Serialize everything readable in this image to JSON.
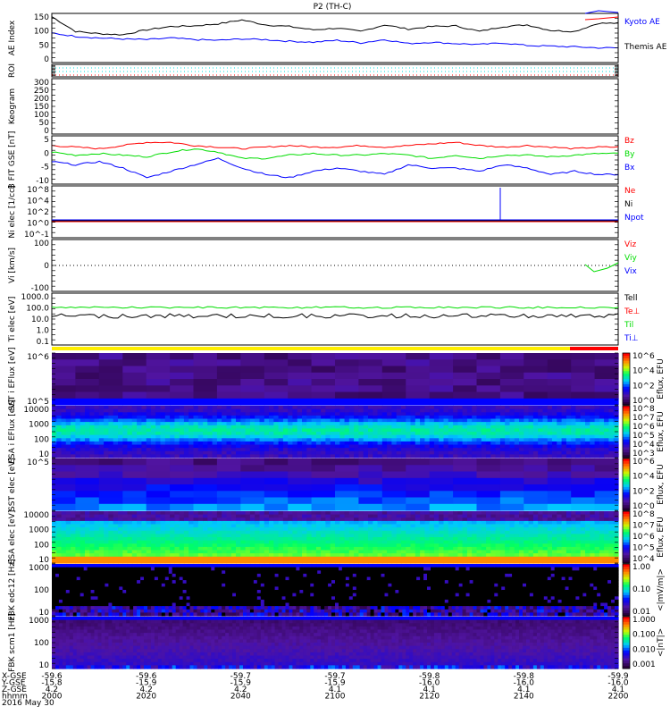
{
  "title": "P2 (TH-C)",
  "chart_data": [
    {
      "type": "line",
      "id": "ae",
      "ylabel": "AE Index",
      "ylim": [
        0,
        150
      ],
      "yticks": [
        "150",
        "100",
        "50",
        "0"
      ],
      "legend": [
        {
          "name": "Kyoto AE",
          "color": "#0000ff"
        },
        {
          "name": "Themis AE",
          "color": "#000000"
        }
      ],
      "series": [
        {
          "name": "Themis AE",
          "color": "#000000",
          "values": [
            140,
            95,
            88,
            85,
            100,
            110,
            112,
            118,
            130,
            115,
            110,
            100,
            105,
            95,
            115,
            102,
            110,
            112,
            95,
            110,
            115,
            98,
            95,
            120
          ]
        },
        {
          "name": "Kyoto AE",
          "color": "#0000ff",
          "values": [
            90,
            80,
            75,
            72,
            70,
            75,
            70,
            68,
            72,
            70,
            65,
            62,
            68,
            60,
            70,
            58,
            62,
            58,
            55,
            60,
            52,
            50,
            48,
            45
          ]
        }
      ]
    },
    {
      "type": "line",
      "id": "roi",
      "ylabel": "ROI"
    },
    {
      "type": "line",
      "id": "keogram",
      "ylabel": "Keogram",
      "ylim": [
        0,
        300
      ],
      "yticks": [
        "300",
        "250",
        "200",
        "150",
        "100",
        "50",
        "0"
      ]
    },
    {
      "type": "line",
      "id": "bfit",
      "ylabel": "B FIT GSE [nT]",
      "ylim": [
        -10,
        5
      ],
      "yticks": [
        "5",
        "0",
        "-5",
        "-10"
      ],
      "legend": [
        {
          "name": "Bz",
          "color": "#ff0000"
        },
        {
          "name": "By",
          "color": "#00dd00"
        },
        {
          "name": "Bx",
          "color": "#0000ff"
        }
      ],
      "series": [
        {
          "name": "Bz",
          "color": "#ff0000",
          "values": [
            2,
            1.5,
            1,
            2,
            3,
            3,
            2,
            1.5,
            1,
            1.5,
            2,
            1.5,
            1.5,
            2,
            1.5,
            2,
            2.5,
            3,
            2,
            1.5,
            2,
            1.5,
            1,
            1.5
          ]
        },
        {
          "name": "By",
          "color": "#00dd00",
          "values": [
            0,
            -1,
            -0.5,
            -1,
            -1.5,
            0,
            1,
            0,
            -2,
            -2,
            -1,
            -0.5,
            -1,
            -1,
            -0.5,
            -1,
            -2,
            -1,
            -2,
            -1,
            -1,
            -1.5,
            -1,
            -0.5
          ]
        },
        {
          "name": "Bx",
          "color": "#0000ff",
          "values": [
            -3,
            -4,
            -3,
            -5,
            -8,
            -6,
            -4,
            -2,
            -5,
            -7,
            -8,
            -6,
            -5,
            -6,
            -7,
            -4,
            -5,
            -5,
            -6,
            -4,
            -5,
            -7,
            -6,
            -7
          ]
        }
      ]
    },
    {
      "type": "line",
      "id": "ni",
      "ylabel": "Ni elec [1/cc]",
      "yticks": [
        "10^8",
        "10^4",
        "10^2",
        "10^0",
        "10^-1"
      ],
      "legend": [
        {
          "name": "Ne",
          "color": "#ff0000"
        },
        {
          "name": "Ni",
          "color": "#000000"
        },
        {
          "name": "Npot",
          "color": "#0000ff"
        }
      ]
    },
    {
      "type": "line",
      "id": "vi",
      "ylabel": "Vi [km/s]",
      "ylim": [
        -200,
        200
      ],
      "yticks": [
        "100",
        "0",
        "-100"
      ],
      "legend": [
        {
          "name": "Viz",
          "color": "#ff0000"
        },
        {
          "name": "Viy",
          "color": "#00dd00"
        },
        {
          "name": "Vix",
          "color": "#0000ff"
        }
      ]
    },
    {
      "type": "line",
      "id": "ti",
      "ylabel": "Ti elec [eV]",
      "yticks": [
        "1000.0",
        "100.0",
        "10.0",
        "1.0",
        "0.1"
      ],
      "legend": [
        {
          "name": "Tell",
          "color": "#000000"
        },
        {
          "name": "Te⊥",
          "color": "#ff0000"
        },
        {
          "name": "Til",
          "color": "#00dd00"
        },
        {
          "name": "Ti⊥",
          "color": "#0000ff"
        }
      ]
    },
    {
      "type": "heatmap",
      "id": "sst-i",
      "ylabel": "SST i EFlux [eV]",
      "yticks": [
        "10^6",
        "10^5"
      ],
      "colorbar": {
        "label": "Eflux, EFU",
        "ticks": [
          "10^6",
          "10^4",
          "10^2",
          "10^0"
        ]
      }
    },
    {
      "type": "heatmap",
      "id": "esa-i",
      "ylabel": "ESA i EFlux [eV]",
      "yticks": [
        "10000",
        "1000",
        "100",
        "10"
      ],
      "colorbar": {
        "label": "Eflux, EFU",
        "ticks": [
          "10^8",
          "10^7",
          "10^6",
          "10^5",
          "10^4",
          "10^3"
        ]
      }
    },
    {
      "type": "heatmap",
      "id": "sst-e",
      "ylabel": "SST elec [eV]",
      "yticks": [
        "10^5"
      ],
      "colorbar": {
        "label": "Eflux, EFU",
        "ticks": [
          "10^6",
          "10^4",
          "10^2",
          "10^0"
        ]
      }
    },
    {
      "type": "heatmap",
      "id": "esa-e",
      "ylabel": "ESA elec [eV]",
      "yticks": [
        "10000",
        "1000",
        "100",
        "10"
      ],
      "colorbar": {
        "label": "Eflux, EFU",
        "ticks": [
          "10^8",
          "10^7",
          "10^6",
          "10^5",
          "10^4"
        ]
      }
    },
    {
      "type": "heatmap",
      "id": "fbk-edc12",
      "ylabel": "FBK edc12 [Hz]",
      "yticks": [
        "1000",
        "100",
        "10"
      ],
      "colorbar": {
        "label": "<|mV/m|>",
        "ticks": [
          "1.00",
          "0.10",
          "0.01"
        ]
      }
    },
    {
      "type": "heatmap",
      "id": "fbk-scm1",
      "ylabel": "FBK scm1 [Hz]",
      "yticks": [
        "1000",
        "100",
        "10"
      ],
      "colorbar": {
        "label": "<|nT|>",
        "ticks": [
          "1.000",
          "0.100",
          "0.010",
          "0.001"
        ]
      }
    }
  ],
  "xaxis": {
    "rows": [
      {
        "label": "X-GSE",
        "values": [
          "-59.6",
          "-59.6",
          "-59.7",
          "-59.7",
          "-59.8",
          "-59.8",
          "-59.9"
        ]
      },
      {
        "label": "Y-GSE",
        "values": [
          "-15.8",
          "-15.9",
          "-15.9",
          "-15.9",
          "-16.0",
          "-16.0",
          "-16.0"
        ]
      },
      {
        "label": "Z-GSE",
        "values": [
          "4.2",
          "4.2",
          "4.2",
          "4.1",
          "4.1",
          "4.1",
          "4.1"
        ]
      },
      {
        "label": "hhmm",
        "values": [
          "2000",
          "2020",
          "2040",
          "2100",
          "2120",
          "2140",
          "2200"
        ]
      }
    ],
    "date": "2016 May 30"
  }
}
